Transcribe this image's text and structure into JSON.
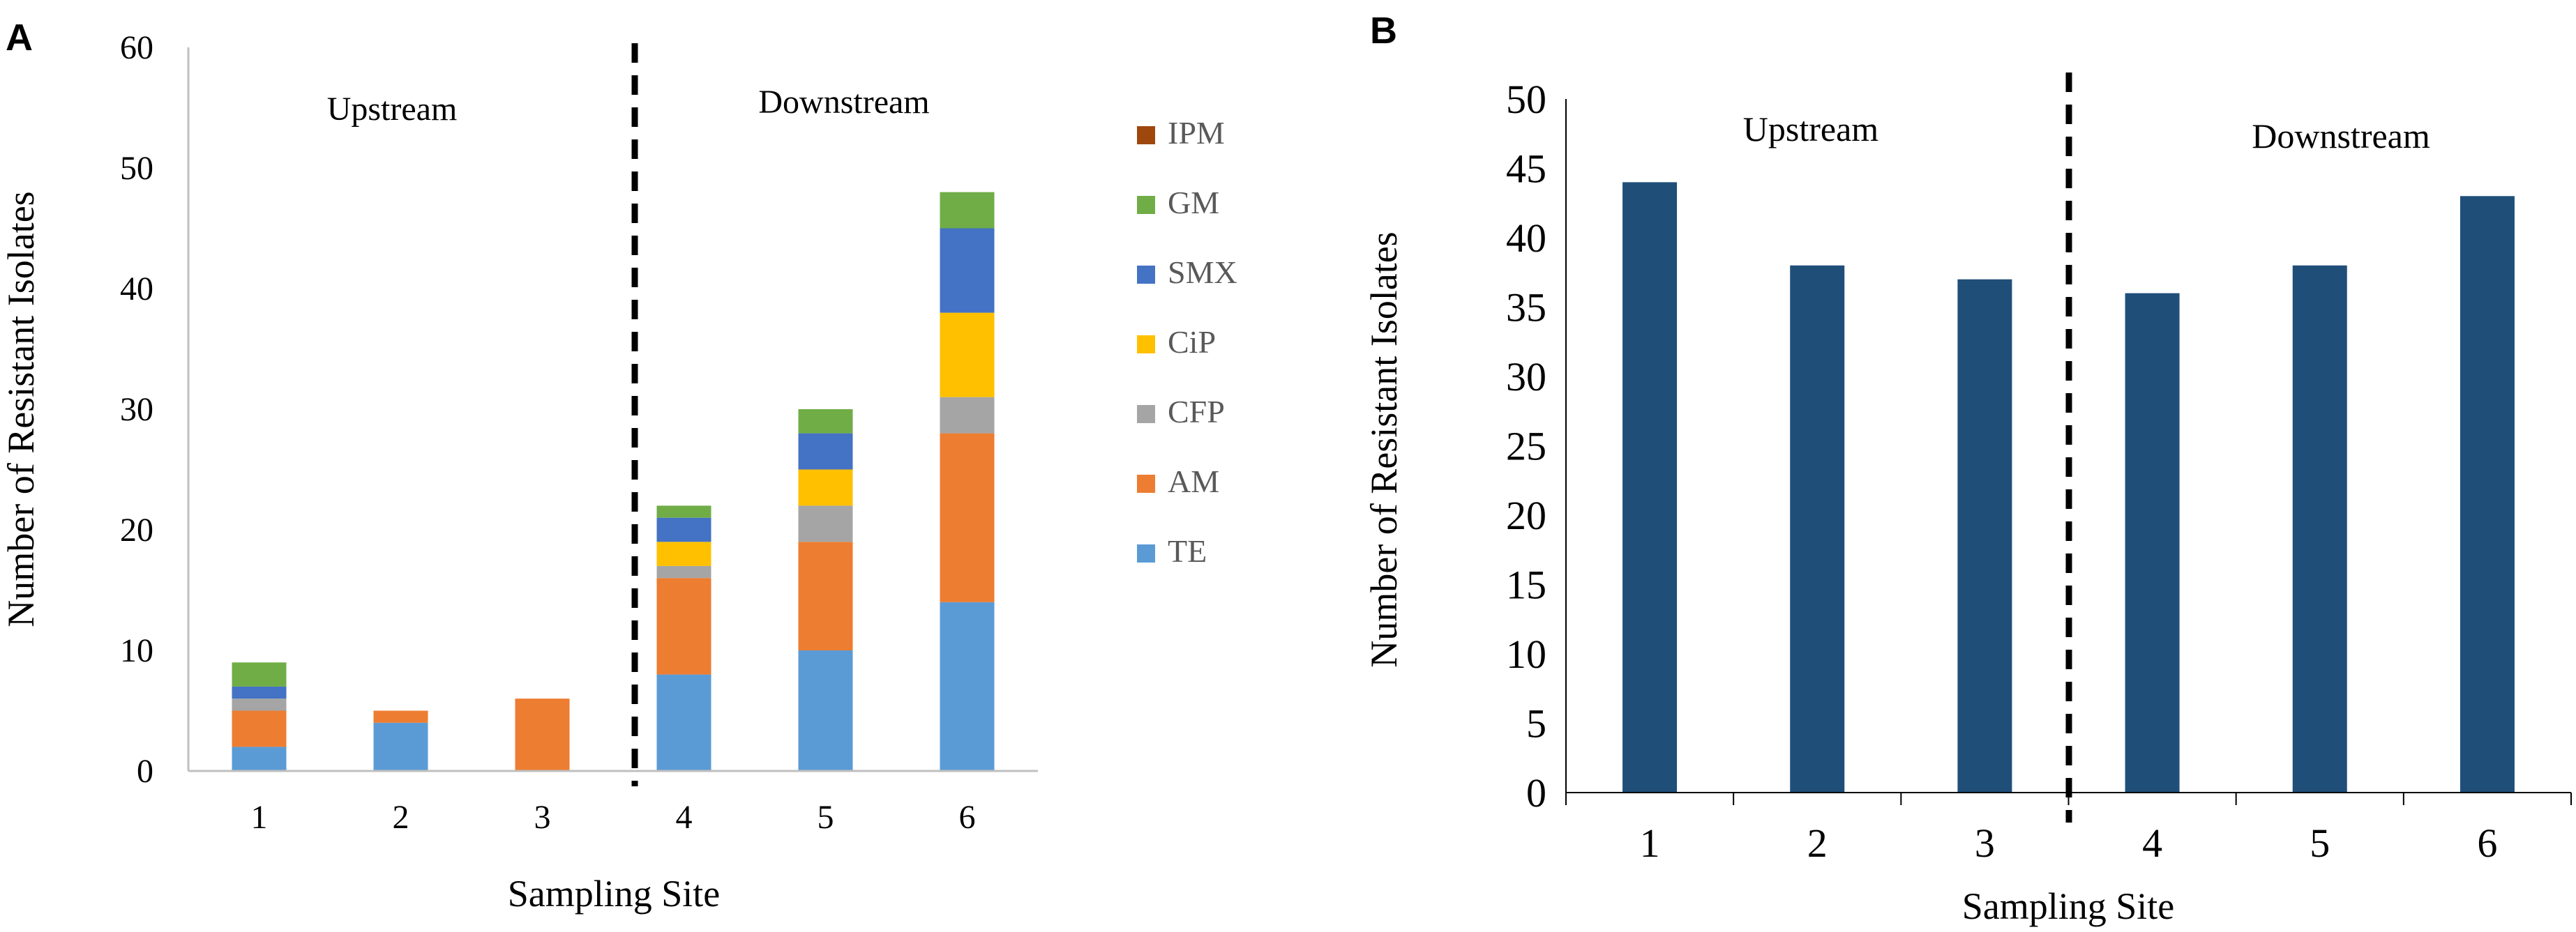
{
  "chart_data": [
    {
      "type": "bar",
      "stacked": true,
      "panel_label": "A",
      "categories": [
        "1",
        "2",
        "3",
        "4",
        "5",
        "6"
      ],
      "series": [
        {
          "name": "TE",
          "color": "#5B9BD5",
          "values": [
            2,
            4,
            0,
            8,
            10,
            14
          ]
        },
        {
          "name": "AM",
          "color": "#ED7D31",
          "values": [
            3,
            1,
            6,
            8,
            9,
            14
          ]
        },
        {
          "name": "CFP",
          "color": "#A5A5A5",
          "values": [
            1,
            0,
            0,
            1,
            3,
            3
          ]
        },
        {
          "name": "CiP",
          "color": "#FFC000",
          "values": [
            0,
            0,
            0,
            2,
            3,
            7
          ]
        },
        {
          "name": "SMX",
          "color": "#4472C4",
          "values": [
            1,
            0,
            0,
            2,
            3,
            7
          ]
        },
        {
          "name": "GM",
          "color": "#70AD47",
          "values": [
            2,
            0,
            0,
            1,
            2,
            3
          ]
        },
        {
          "name": "IPM",
          "color": "#9E480E",
          "values": [
            0,
            0,
            0,
            0,
            0,
            0
          ]
        }
      ],
      "legend_order": [
        "IPM",
        "GM",
        "SMX",
        "CiP",
        "CFP",
        "AM",
        "TE"
      ],
      "xlabel": "Sampling Site",
      "ylabel": "Number of Resistant Isolates",
      "ylim": [
        0,
        60
      ],
      "yticks": [
        "0",
        "10",
        "20",
        "30",
        "40",
        "50",
        "60"
      ],
      "region_labels": [
        "Upstream",
        "Downstream"
      ],
      "divider_after_category": "3",
      "legend_position": "right"
    },
    {
      "type": "bar",
      "panel_label": "B",
      "categories": [
        "1",
        "2",
        "3",
        "4",
        "5",
        "6"
      ],
      "values": [
        44,
        38,
        37,
        36,
        38,
        43
      ],
      "color": "#1F4E79",
      "xlabel": "Sampling Site",
      "ylabel": "Number of Resistant Isolates",
      "ylim": [
        0,
        50
      ],
      "yticks": [
        "0",
        "5",
        "10",
        "15",
        "20",
        "25",
        "30",
        "35",
        "40",
        "45",
        "50"
      ],
      "region_labels": [
        "Upstream",
        "Downstream"
      ],
      "divider_after_category": "3"
    }
  ]
}
